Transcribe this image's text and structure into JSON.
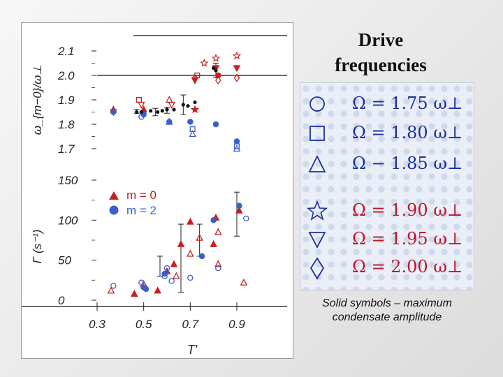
{
  "heading": {
    "line1": "Drive",
    "line2": "frequencies"
  },
  "legend_rows": [
    {
      "symbol": "circle",
      "text": "Ω = 1.75 ω⊥",
      "color": "#1a2fa0"
    },
    {
      "symbol": "square",
      "text": "Ω = 1.80 ω⊥",
      "color": "#1a2fa0"
    },
    {
      "symbol": "triangle-up",
      "text": "Ω − 1.85 ω⊥",
      "color": "#1a2fa0"
    },
    {
      "symbol": "star",
      "text": "Ω = 1.90 ω⊥",
      "color": "#c0142a"
    },
    {
      "symbol": "triangle-down",
      "text": "Ω = 1.95 ω⊥",
      "color": "#c0142a"
    },
    {
      "symbol": "diamond",
      "text": "Ω = 2.00 ω⊥",
      "color": "#c0142a"
    }
  ],
  "caption": {
    "line1": "Solid symbols – maximum",
    "line2": "condensate amplitude"
  },
  "chart_data": {
    "type": "scatter",
    "xlabel": "T′",
    "x_ticks": [
      "0.3",
      "0.5",
      "0.7",
      "0.9"
    ],
    "xlim": [
      0.3,
      0.9
    ],
    "colors": {
      "m0": "#c81e1e",
      "m2": "#3a5ed0",
      "black": "#111111"
    },
    "top": {
      "ylabel": "ω_{m−0}/ω⊥",
      "ylim": [
        1.7,
        2.1
      ],
      "y_ticks": [
        "2.1",
        "2.0",
        "1.9",
        "1.8",
        "1.7"
      ],
      "reference_y": 2.0,
      "series": [
        {
          "mode": "m0",
          "points": [
            {
              "x": 0.37,
              "y": 1.86,
              "s": "tu",
              "f": true
            },
            {
              "x": 0.37,
              "y": 1.85,
              "s": "td",
              "f": true
            },
            {
              "x": 0.48,
              "y": 1.9,
              "s": "sq",
              "f": false
            },
            {
              "x": 0.49,
              "y": 1.88,
              "s": "td",
              "f": false
            },
            {
              "x": 0.5,
              "y": 1.86,
              "s": "tu",
              "f": true
            },
            {
              "x": 0.61,
              "y": 1.9,
              "s": "tu",
              "f": false
            },
            {
              "x": 0.62,
              "y": 1.88,
              "s": "td",
              "f": false
            },
            {
              "x": 0.72,
              "y": 1.86,
              "s": "st",
              "f": true
            },
            {
              "x": 0.72,
              "y": 1.99,
              "s": "di",
              "f": false
            },
            {
              "x": 0.72,
              "y": 1.98,
              "s": "td",
              "f": true
            },
            {
              "x": 0.73,
              "y": 2.0,
              "s": "sq",
              "f": false
            },
            {
              "x": 0.76,
              "y": 2.05,
              "s": "st",
              "f": false
            },
            {
              "x": 0.81,
              "y": 2.07,
              "s": "st",
              "f": false
            },
            {
              "x": 0.81,
              "y": 2.03,
              "s": "td",
              "f": true
            },
            {
              "x": 0.82,
              "y": 2.0,
              "s": "ci",
              "f": true
            },
            {
              "x": 0.82,
              "y": 1.98,
              "s": "di",
              "f": false
            },
            {
              "x": 0.9,
              "y": 2.08,
              "s": "st",
              "f": false
            },
            {
              "x": 0.9,
              "y": 2.03,
              "s": "td",
              "f": true
            },
            {
              "x": 0.9,
              "y": 1.99,
              "s": "di",
              "f": false
            }
          ]
        },
        {
          "mode": "m2",
          "points": [
            {
              "x": 0.37,
              "y": 1.85,
              "s": "ci",
              "f": true
            },
            {
              "x": 0.49,
              "y": 1.83,
              "s": "ci",
              "f": false
            },
            {
              "x": 0.5,
              "y": 1.84,
              "s": "ci",
              "f": true
            },
            {
              "x": 0.61,
              "y": 1.81,
              "s": "ci",
              "f": true
            },
            {
              "x": 0.61,
              "y": 1.81,
              "s": "tu",
              "f": false
            },
            {
              "x": 0.7,
              "y": 1.81,
              "s": "ci",
              "f": true
            },
            {
              "x": 0.71,
              "y": 1.78,
              "s": "sq",
              "f": false
            },
            {
              "x": 0.71,
              "y": 1.76,
              "s": "tu",
              "f": false
            },
            {
              "x": 0.81,
              "y": 1.8,
              "s": "ci",
              "f": true
            },
            {
              "x": 0.9,
              "y": 1.73,
              "s": "ci",
              "f": true
            },
            {
              "x": 0.9,
              "y": 1.71,
              "s": "sq",
              "f": false
            },
            {
              "x": 0.9,
              "y": 1.7,
              "s": "tu",
              "f": false
            }
          ]
        },
        {
          "mode": "black",
          "points": [
            {
              "x": 0.47,
              "y": 1.85
            },
            {
              "x": 0.49,
              "y": 1.85
            },
            {
              "x": 0.53,
              "y": 1.855
            },
            {
              "x": 0.56,
              "y": 1.85
            },
            {
              "x": 0.58,
              "y": 1.855
            },
            {
              "x": 0.6,
              "y": 1.86
            },
            {
              "x": 0.63,
              "y": 1.86
            },
            {
              "x": 0.67,
              "y": 1.88
            },
            {
              "x": 0.69,
              "y": 1.875
            },
            {
              "x": 0.72,
              "y": 1.89
            },
            {
              "x": 0.8,
              "y": 2.03
            },
            {
              "x": 0.81,
              "y": 2.02
            }
          ]
        }
      ],
      "error_bars": [
        {
          "x": 0.47,
          "lo": 1.845,
          "hi": 1.86
        },
        {
          "x": 0.55,
          "lo": 1.835,
          "hi": 1.865
        },
        {
          "x": 0.6,
          "lo": 1.845,
          "hi": 1.87
        },
        {
          "x": 0.67,
          "lo": 1.84,
          "hi": 1.92
        },
        {
          "x": 0.81,
          "lo": 1.99,
          "hi": 2.05
        }
      ]
    },
    "bottom": {
      "ylabel": "Γ (s⁻¹)",
      "ylim": [
        0,
        150
      ],
      "y_ticks": [
        "150",
        "100",
        "50",
        "0"
      ],
      "legend_items": [
        {
          "label": "m = 0",
          "symbol": "triangle",
          "series": "m0"
        },
        {
          "label": "m = 2",
          "symbol": "circle",
          "series": "m2"
        }
      ],
      "series": [
        {
          "mode": "m0",
          "points": [
            {
              "x": 0.36,
              "y": 12,
              "s": "tu",
              "f": false
            },
            {
              "x": 0.46,
              "y": 8,
              "s": "tu",
              "f": true
            },
            {
              "x": 0.5,
              "y": 20,
              "s": "tu",
              "f": false
            },
            {
              "x": 0.56,
              "y": 12,
              "s": "tu",
              "f": true
            },
            {
              "x": 0.6,
              "y": 36,
              "s": "tu",
              "f": true
            },
            {
              "x": 0.63,
              "y": 45,
              "s": "tu",
              "f": true
            },
            {
              "x": 0.64,
              "y": 30,
              "s": "tu",
              "f": false
            },
            {
              "x": 0.66,
              "y": 70,
              "s": "tu",
              "f": true
            },
            {
              "x": 0.7,
              "y": 98,
              "s": "tu",
              "f": true
            },
            {
              "x": 0.7,
              "y": 58,
              "s": "tu",
              "f": false
            },
            {
              "x": 0.74,
              "y": 78,
              "s": "tu",
              "f": false
            },
            {
              "x": 0.8,
              "y": 70,
              "s": "tu",
              "f": true
            },
            {
              "x": 0.81,
              "y": 103,
              "s": "tu",
              "f": true
            },
            {
              "x": 0.82,
              "y": 85,
              "s": "tu",
              "f": false
            },
            {
              "x": 0.82,
              "y": 45,
              "s": "tu",
              "f": false
            },
            {
              "x": 0.91,
              "y": 112,
              "s": "tu",
              "f": true
            },
            {
              "x": 0.93,
              "y": 22,
              "s": "tu",
              "f": false
            }
          ]
        },
        {
          "mode": "m2",
          "points": [
            {
              "x": 0.37,
              "y": 18,
              "s": "ci",
              "f": false
            },
            {
              "x": 0.49,
              "y": 22,
              "s": "ci",
              "f": false
            },
            {
              "x": 0.5,
              "y": 16,
              "s": "ci",
              "f": true
            },
            {
              "x": 0.51,
              "y": 14,
              "s": "ci",
              "f": true
            },
            {
              "x": 0.59,
              "y": 33,
              "s": "ci",
              "f": true
            },
            {
              "x": 0.59,
              "y": 30,
              "s": "ci",
              "f": false
            },
            {
              "x": 0.6,
              "y": 40,
              "s": "ci",
              "f": false
            },
            {
              "x": 0.62,
              "y": 24,
              "s": "ci",
              "f": false
            },
            {
              "x": 0.7,
              "y": 28,
              "s": "ci",
              "f": false
            },
            {
              "x": 0.75,
              "y": 55,
              "s": "ci",
              "f": true
            },
            {
              "x": 0.8,
              "y": 100,
              "s": "ci",
              "f": true
            },
            {
              "x": 0.82,
              "y": 40,
              "s": "ci",
              "f": false
            },
            {
              "x": 0.91,
              "y": 118,
              "s": "ci",
              "f": true
            },
            {
              "x": 0.94,
              "y": 102,
              "s": "ci",
              "f": false
            }
          ]
        }
      ],
      "error_bars": [
        {
          "x": 0.57,
          "lo": 30,
          "hi": 55
        },
        {
          "x": 0.66,
          "lo": 10,
          "hi": 95
        },
        {
          "x": 0.74,
          "lo": 55,
          "hi": 95
        },
        {
          "x": 0.9,
          "lo": 80,
          "hi": 135
        }
      ]
    }
  }
}
